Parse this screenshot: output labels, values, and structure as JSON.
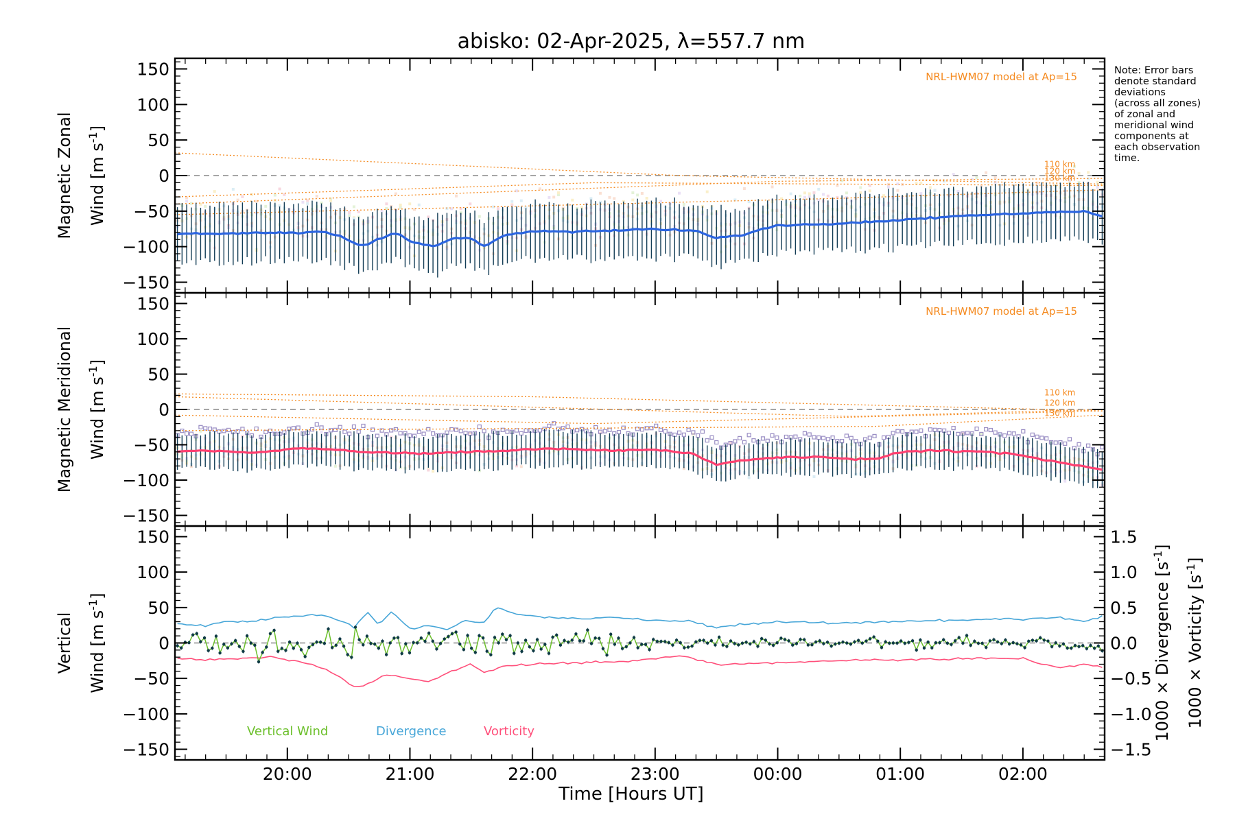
{
  "chart_data": {
    "type": "line",
    "title": "abisko: 02-Apr-2025, λ=557.7 nm",
    "note": [
      "Note: Error bars",
      "denote standard",
      "deviations",
      "(across all zones)",
      "of zonal and",
      "meridional wind",
      "components at",
      "each observation",
      "time."
    ],
    "xlabel": "Time [Hours UT]",
    "x_ticks": [
      "20:00",
      "21:00",
      "22:00",
      "23:00",
      "00:00",
      "01:00",
      "02:00"
    ],
    "xlim": [
      "19:05",
      "02:40"
    ],
    "colors": {
      "zonal": "#2b64e0",
      "errorbar": "#123c55",
      "model": "#f58a1f",
      "meridional": "#ff4070",
      "vertical": "#6bbf2a",
      "divergence": "#47a6d8",
      "vorticity": "#ff4f7a",
      "scatter": "#9a8ec4"
    },
    "panels": [
      {
        "name": "zonal",
        "ylabel_line1": "Magnetic Zonal",
        "ylabel_line2": "Wind [m s",
        "ylabel_sup": "-1",
        "ylabel_close": "]",
        "ylim": [
          -165,
          165
        ],
        "y_ticks": [
          "150",
          "100",
          "50",
          "0",
          "−50",
          "−100",
          "−150"
        ],
        "model_label": "NRL-HWM07 model at Ap=15",
        "model_altitudes": [
          "110 km",
          "120 km",
          "130 km"
        ],
        "mean_wind": {
          "times": [
            19.08,
            19.4,
            19.75,
            20.1,
            20.3,
            20.5,
            20.6,
            20.7,
            20.9,
            21.0,
            21.2,
            21.35,
            21.5,
            21.6,
            21.75,
            22.0,
            22.4,
            22.8,
            23.1,
            23.3,
            23.5,
            23.7,
            24.0,
            24.5,
            25.0,
            25.5,
            26.0,
            26.5,
            26.65
          ],
          "values": [
            -82,
            -82,
            -81,
            -80,
            -79,
            -90,
            -100,
            -92,
            -80,
            -93,
            -100,
            -88,
            -88,
            -100,
            -85,
            -78,
            -79,
            -76,
            -76,
            -77,
            -87,
            -84,
            -70,
            -68,
            -62,
            -57,
            -53,
            -50,
            -58
          ]
        },
        "error_sd": 38
      },
      {
        "name": "meridional",
        "ylabel_line1": "Magnetic Meridional",
        "ylabel_line2": "Wind [m s",
        "ylabel_sup": "-1",
        "ylabel_close": "]",
        "ylim": [
          -165,
          165
        ],
        "y_ticks": [
          "150",
          "100",
          "50",
          "0",
          "−50",
          "−100",
          "−150"
        ],
        "model_label": "NRL-HWM07 model at Ap=15",
        "model_altitudes": [
          "110 km",
          "120 km",
          "130 km"
        ],
        "mean_wind": {
          "times": [
            19.08,
            19.4,
            19.75,
            20.05,
            20.3,
            20.6,
            20.9,
            21.2,
            21.5,
            21.8,
            22.2,
            22.6,
            23.0,
            23.3,
            23.5,
            23.7,
            24.0,
            24.3,
            24.6,
            24.8,
            25.0,
            25.3,
            25.6,
            25.9,
            26.2,
            26.4,
            26.65
          ],
          "values": [
            -60,
            -58,
            -62,
            -55,
            -56,
            -60,
            -62,
            -62,
            -60,
            -58,
            -55,
            -58,
            -57,
            -62,
            -78,
            -72,
            -68,
            -67,
            -70,
            -70,
            -60,
            -58,
            -60,
            -62,
            -72,
            -78,
            -85
          ]
        },
        "error_sd": 24
      },
      {
        "name": "vertical",
        "ylabel_line1": "Vertical",
        "ylabel_line2": "Wind [m s",
        "ylabel_sup": "-1",
        "ylabel_close": "]",
        "ylim": [
          -165,
          165
        ],
        "y_ticks": [
          "150",
          "100",
          "50",
          "0",
          "−50",
          "−100",
          "−150"
        ],
        "right_ylim": [
          -1.65,
          1.65
        ],
        "right_y_ticks": [
          "1.5",
          "1.0",
          "0.5",
          "0.0",
          "−0.5",
          "−1.0",
          "−1.5"
        ],
        "right_label_div_pre": "1000 × Divergence [s",
        "right_label_vort_pre": "1000 × Vorticity [s",
        "right_label_sup": "-1",
        "right_label_close": "]",
        "legend": [
          "Vertical Wind",
          "Divergence",
          "Vorticity"
        ],
        "divergence": {
          "times": [
            19.08,
            19.3,
            19.5,
            19.7,
            19.9,
            20.1,
            20.3,
            20.45,
            20.55,
            20.65,
            20.75,
            20.85,
            21.0,
            21.15,
            21.3,
            21.45,
            21.6,
            21.7,
            21.9,
            22.1,
            22.4,
            22.7,
            23.0,
            23.3,
            23.5,
            23.7,
            24.0,
            24.5,
            25.0,
            25.5,
            26.0,
            26.3,
            26.5,
            26.65
          ],
          "values": [
            0.28,
            0.24,
            0.3,
            0.3,
            0.36,
            0.38,
            0.4,
            0.3,
            0.22,
            0.44,
            0.26,
            0.44,
            0.2,
            0.25,
            0.18,
            0.32,
            0.28,
            0.5,
            0.4,
            0.36,
            0.34,
            0.36,
            0.32,
            0.3,
            0.22,
            0.26,
            0.3,
            0.28,
            0.3,
            0.32,
            0.34,
            0.36,
            0.3,
            0.38
          ]
        },
        "vorticity": {
          "times": [
            19.08,
            19.3,
            19.6,
            19.9,
            20.2,
            20.4,
            20.55,
            20.65,
            20.8,
            21.0,
            21.15,
            21.3,
            21.5,
            21.6,
            21.8,
            22.0,
            22.4,
            22.8,
            23.0,
            23.2,
            23.5,
            24.0,
            24.5,
            25.0,
            25.5,
            26.0,
            26.3,
            26.5,
            26.65
          ],
          "values": [
            -0.22,
            -0.24,
            -0.22,
            -0.2,
            -0.3,
            -0.45,
            -0.62,
            -0.58,
            -0.45,
            -0.5,
            -0.55,
            -0.42,
            -0.3,
            -0.42,
            -0.32,
            -0.3,
            -0.28,
            -0.25,
            -0.22,
            -0.18,
            -0.3,
            -0.28,
            -0.24,
            -0.24,
            -0.22,
            -0.22,
            -0.35,
            -0.3,
            -0.34
          ]
        }
      }
    ]
  }
}
